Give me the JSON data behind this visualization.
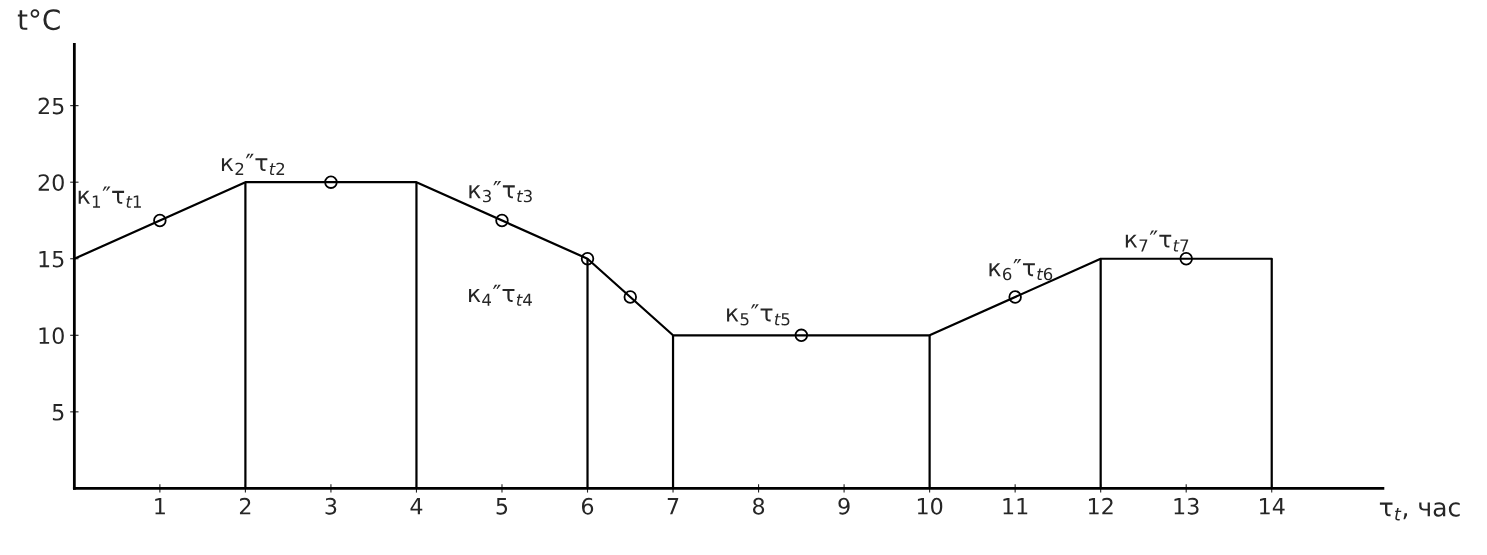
{
  "chart_data": {
    "type": "line",
    "xlabel": "τ$_{t}$, час",
    "ylabel": "t°C",
    "xlim": [
      0,
      15.3
    ],
    "ylim": [
      0,
      29
    ],
    "xticks": [
      1,
      2,
      3,
      4,
      5,
      6,
      7,
      8,
      9,
      10,
      11,
      12,
      13,
      14
    ],
    "yticks": [
      5,
      10,
      15,
      20,
      25
    ],
    "grid": false,
    "legend": false,
    "series": [
      {
        "color": "#000000",
        "line_style": "solid",
        "x": [
          0,
          2,
          4,
          6,
          7,
          10,
          12,
          14
        ],
        "values": [
          15,
          20,
          20,
          15,
          10,
          10,
          15,
          15
        ]
      },
      {
        "type": "scatter",
        "color": "#000000",
        "marker": "circle",
        "x": [
          1,
          3,
          5,
          6,
          6.5,
          8.5,
          11,
          13
        ],
        "values": [
          17.5,
          20,
          17.5,
          15,
          12.5,
          10,
          12.5,
          15
        ]
      }
    ],
    "ref_lines": [
      {
        "axis": "x",
        "value": 2,
        "label": null,
        "color": "#000000"
      },
      {
        "axis": "x",
        "value": 4,
        "label": null,
        "color": "#000000"
      },
      {
        "axis": "x",
        "value": 6,
        "label": null,
        "color": "#000000"
      },
      {
        "axis": "x",
        "value": 7,
        "label": null,
        "color": "#000000"
      },
      {
        "axis": "x",
        "value": 10,
        "label": null,
        "color": "#000000"
      },
      {
        "axis": "x",
        "value": 12,
        "label": null,
        "color": "#000000"
      },
      {
        "axis": "x",
        "value": 14,
        "label": null,
        "color": "#000000"
      }
    ],
    "annotations": [
      {
        "text": "к$_{1}$″τ$_{t1}$",
        "x": 1,
        "y": 17.5
      },
      {
        "text": "к$_{2}$″τ$_{t2}$",
        "x": 3,
        "y": 20
      },
      {
        "text": "к$_{3}$″τ$_{t3}$",
        "x": 5,
        "y": 17.5
      },
      "к$_{4}$″τ$_{t4}$",
      {
        "text": "к$_{5}$″τ$_{t5}$",
        "x": 8.5,
        "y": 10
      },
      {
        "text": "к$_{6}$″τ$_{t6}$",
        "x": 11,
        "y": 12.5
      },
      {
        "text": "к$_{7}$″τ$_{t7}$",
        "x": 13,
        "y": 15
      }
    ]
  }
}
